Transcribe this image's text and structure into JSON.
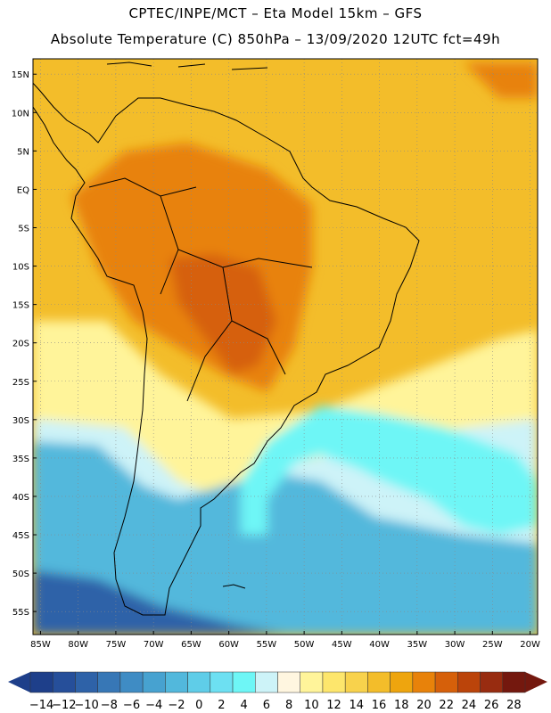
{
  "header": {
    "line1": "CPTEC/INPE/MCT –   Eta Model 15km – GFS",
    "line2": "Absolute Temperature (C) 850hPa – 13/09/2020 12UTC fct=49h"
  },
  "map": {
    "lat_ticks": [
      "15N",
      "10N",
      "5N",
      "EQ",
      "5S",
      "10S",
      "15S",
      "20S",
      "25S",
      "30S",
      "35S",
      "40S",
      "45S",
      "50S",
      "55S"
    ],
    "lon_ticks": [
      "85W",
      "80W",
      "75W",
      "70W",
      "65W",
      "60W",
      "55W",
      "50W",
      "45W",
      "40W",
      "35W",
      "30W",
      "25W",
      "20W"
    ],
    "lon_range": [
      -86,
      -19
    ],
    "lat_range": [
      -58,
      17
    ]
  },
  "colorbar": {
    "labels": [
      "-14",
      "-12",
      "-10",
      "-8",
      "-6",
      "-4",
      "-2",
      "0",
      "2",
      "4",
      "6",
      "8",
      "10",
      "12",
      "14",
      "16",
      "18",
      "20",
      "22",
      "24",
      "26",
      "28"
    ],
    "colors": [
      "#1e3f8a",
      "#264f9a",
      "#2e62a8",
      "#3777b6",
      "#3f8cc4",
      "#47a2d0",
      "#52b8dc",
      "#5fcde8",
      "#6de0f2",
      "#6ef6f6",
      "#cdf3f8",
      "#fff6e0",
      "#fff49a",
      "#fde66c",
      "#f8d24c",
      "#f3bd2a",
      "#eea50e",
      "#e8820a",
      "#d6600a",
      "#bb440a",
      "#982c10",
      "#74180e"
    ],
    "left_arrow_color": "#1e3f8a",
    "right_arrow_color": "#74180e"
  },
  "palette": {
    "ocean_far_south": "#2e62a8",
    "ocean_south": "#52b8dc",
    "cold_tongue": "#6ef6f6",
    "ocean_mid": "#cdf3f8",
    "ocean_warm": "#fff49a",
    "ocean_tropical": "#f3bd2a",
    "land_hot": "#e8820a",
    "land_very_hot": "#d6600a",
    "coast_line": "#000000",
    "grid_line": "#888888"
  }
}
